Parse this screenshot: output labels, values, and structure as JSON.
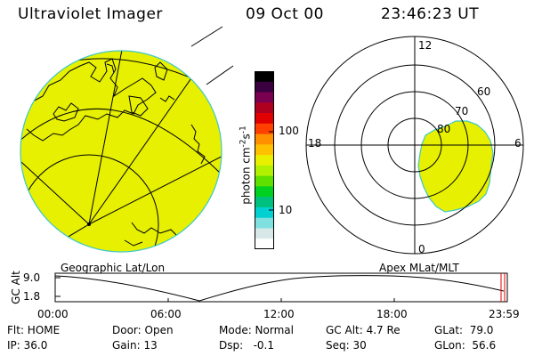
{
  "header": {
    "title": "Ultraviolet Imager",
    "date": "09 Oct 00",
    "time": "23:46:23 UT"
  },
  "colorbar": {
    "label": "photon cm^-2 s^-1",
    "label_main": "photon cm",
    "label_exp1": "-2",
    "label_s": "s",
    "label_exp2": "-1",
    "tick_high": "100",
    "tick_low": "10",
    "colors": [
      "#000000",
      "#3a0040",
      "#7a0050",
      "#b00020",
      "#e00000",
      "#ff4000",
      "#ff9000",
      "#ffc000",
      "#e8f000",
      "#b0f000",
      "#60e000",
      "#00d020",
      "#00c080",
      "#00d0d0",
      "#80e0e0",
      "#d8e8e8",
      "#ffffff"
    ]
  },
  "geo_panel": {
    "caption": "Geographic Lat/Lon",
    "fill_color": "#e6f000"
  },
  "polar_panel": {
    "caption": "Apex MLat/MLT",
    "mlt_labels": {
      "top": "12",
      "right": "6",
      "bottom": "0",
      "left": "18"
    },
    "lat_labels": [
      "60",
      "70",
      "80"
    ],
    "fill_color": "#e6f000"
  },
  "altitude_plot": {
    "axis_title": "GC Alt",
    "y_ticks": [
      "9.0",
      "1.8"
    ],
    "x_ticks": [
      "00:00",
      "06:00",
      "12:00",
      "18:00",
      "23:59"
    ],
    "marker_color": "#e00000"
  },
  "status": {
    "flt": "Flt: HOME",
    "ip": "IP: 36.0",
    "door": "Door: Open",
    "gain": "Gain: 13",
    "mode": "Mode: Normal",
    "dsp": "Dsp:   -0.1",
    "gcalt": "GC Alt: 4.7 Re",
    "seq": "Seq: 30",
    "glat": "GLat:  79.0",
    "glon": "GLon:  56.6"
  }
}
